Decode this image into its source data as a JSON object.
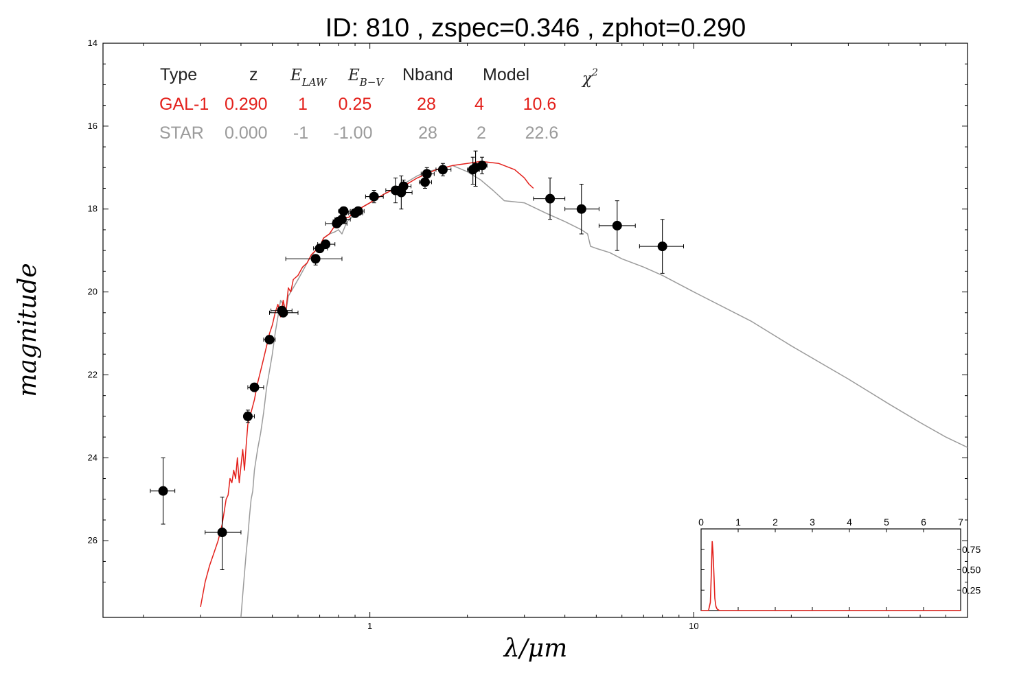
{
  "title": "ID:  810   , zspec=0.346 , zphot=0.290",
  "xlabel": "λ/μm",
  "ylabel": "magnitude",
  "table": {
    "headers": [
      "Type",
      "z",
      "E_LAW",
      "E_B-V",
      "Nband",
      "Model",
      "χ2"
    ],
    "header_math": {
      "e_law": {
        "base": "E",
        "sub": "LAW"
      },
      "e_bv": {
        "base": "E",
        "sub": "B−V"
      },
      "chi2": {
        "base": "χ",
        "sup": "2"
      }
    },
    "rows": [
      {
        "color": "#e3201b",
        "cells": [
          "GAL-1",
          "0.290",
          "1",
          "0.25",
          "28",
          "4",
          "10.6"
        ]
      },
      {
        "color": "#9b9b9b",
        "cells": [
          "STAR",
          "0.000",
          "-1",
          "-1.00",
          "28",
          "2",
          "22.6"
        ]
      }
    ]
  },
  "chart_data": [
    {
      "type": "scatter",
      "xscale": "log",
      "yinverted": true,
      "xlim": [
        0.15,
        70
      ],
      "ylim": [
        27.85,
        14
      ],
      "xticks": [
        {
          "v": 1,
          "label": "1"
        },
        {
          "v": 10,
          "label": "10"
        }
      ],
      "yticks": [
        {
          "v": 14,
          "label": "14"
        },
        {
          "v": 16,
          "label": "16"
        },
        {
          "v": 18,
          "label": "18"
        },
        {
          "v": 20,
          "label": "20"
        },
        {
          "v": 22,
          "label": "22"
        },
        {
          "v": 24,
          "label": "24"
        },
        {
          "v": 26,
          "label": "26"
        }
      ],
      "grid": false,
      "colors": {
        "galaxy": "#e3201b",
        "star": "#9b9b9b",
        "points": "#000000"
      },
      "points": [
        {
          "x": 0.23,
          "y": 24.8,
          "xlo": 0.21,
          "xhi": 0.25,
          "ylo": 24.0,
          "yhi": 25.6
        },
        {
          "x": 0.35,
          "y": 25.8,
          "xlo": 0.31,
          "xhi": 0.4,
          "ylo": 24.95,
          "yhi": 26.7
        },
        {
          "x": 0.42,
          "y": 23.0,
          "xlo": 0.41,
          "xhi": 0.44,
          "ylo": 22.85,
          "yhi": 23.15
        },
        {
          "x": 0.44,
          "y": 22.3,
          "xlo": 0.42,
          "xhi": 0.47,
          "ylo": 22.2,
          "yhi": 22.4
        },
        {
          "x": 0.49,
          "y": 21.15,
          "xlo": 0.47,
          "xhi": 0.51,
          "ylo": 21.05,
          "yhi": 21.25
        },
        {
          "x": 0.535,
          "y": 20.45,
          "xlo": 0.495,
          "xhi": 0.575,
          "ylo": 20.35,
          "yhi": 20.55
        },
        {
          "x": 0.54,
          "y": 20.5,
          "xlo": 0.49,
          "xhi": 0.6,
          "ylo": 20.4,
          "yhi": 20.6
        },
        {
          "x": 0.68,
          "y": 19.2,
          "xlo": 0.55,
          "xhi": 0.82,
          "ylo": 19.1,
          "yhi": 19.35
        },
        {
          "x": 0.7,
          "y": 18.95,
          "xlo": 0.67,
          "xhi": 0.74,
          "ylo": 18.85,
          "yhi": 19.05
        },
        {
          "x": 0.73,
          "y": 18.85,
          "xlo": 0.69,
          "xhi": 0.78,
          "ylo": 18.75,
          "yhi": 18.95
        },
        {
          "x": 0.79,
          "y": 18.35,
          "xlo": 0.73,
          "xhi": 0.85,
          "ylo": 18.25,
          "yhi": 18.45
        },
        {
          "x": 0.8,
          "y": 18.3,
          "xlo": 0.77,
          "xhi": 0.84,
          "ylo": 18.2,
          "yhi": 18.4
        },
        {
          "x": 0.82,
          "y": 18.25,
          "xlo": 0.78,
          "xhi": 0.87,
          "ylo": 18.15,
          "yhi": 18.35
        },
        {
          "x": 0.83,
          "y": 18.05,
          "xlo": 0.8,
          "xhi": 0.87,
          "ylo": 17.95,
          "yhi": 18.15
        },
        {
          "x": 0.9,
          "y": 18.1,
          "xlo": 0.86,
          "xhi": 0.95,
          "ylo": 18.0,
          "yhi": 18.2
        },
        {
          "x": 0.92,
          "y": 18.05,
          "xlo": 0.88,
          "xhi": 0.96,
          "ylo": 17.95,
          "yhi": 18.15
        },
        {
          "x": 1.03,
          "y": 17.7,
          "xlo": 0.97,
          "xhi": 1.1,
          "ylo": 17.55,
          "yhi": 17.85
        },
        {
          "x": 1.2,
          "y": 17.55,
          "xlo": 1.12,
          "xhi": 1.28,
          "ylo": 17.25,
          "yhi": 17.85
        },
        {
          "x": 1.25,
          "y": 17.6,
          "xlo": 1.18,
          "xhi": 1.35,
          "ylo": 17.2,
          "yhi": 18.0
        },
        {
          "x": 1.27,
          "y": 17.45,
          "xlo": 1.2,
          "xhi": 1.34,
          "ylo": 17.3,
          "yhi": 17.6
        },
        {
          "x": 1.48,
          "y": 17.35,
          "xlo": 1.42,
          "xhi": 1.55,
          "ylo": 17.2,
          "yhi": 17.5
        },
        {
          "x": 1.5,
          "y": 17.15,
          "xlo": 1.44,
          "xhi": 1.58,
          "ylo": 17.0,
          "yhi": 17.3
        },
        {
          "x": 1.68,
          "y": 17.05,
          "xlo": 1.6,
          "xhi": 1.78,
          "ylo": 16.9,
          "yhi": 17.2
        },
        {
          "x": 2.08,
          "y": 17.05,
          "xlo": 2.0,
          "xhi": 2.18,
          "ylo": 16.75,
          "yhi": 17.4
        },
        {
          "x": 2.12,
          "y": 17.0,
          "xlo": 2.05,
          "xhi": 2.2,
          "ylo": 16.6,
          "yhi": 17.45
        },
        {
          "x": 2.22,
          "y": 16.95,
          "xlo": 2.15,
          "xhi": 2.3,
          "ylo": 16.75,
          "yhi": 17.15
        },
        {
          "x": 3.6,
          "y": 17.75,
          "xlo": 3.2,
          "xhi": 4.0,
          "ylo": 17.25,
          "yhi": 18.25
        },
        {
          "x": 4.5,
          "y": 18.0,
          "xlo": 4.0,
          "xhi": 5.1,
          "ylo": 17.4,
          "yhi": 18.6
        },
        {
          "x": 5.8,
          "y": 18.4,
          "xlo": 5.1,
          "xhi": 6.6,
          "ylo": 17.8,
          "yhi": 19.0
        },
        {
          "x": 8.0,
          "y": 18.9,
          "xlo": 6.8,
          "xhi": 9.3,
          "ylo": 18.25,
          "yhi": 19.55
        }
      ],
      "series": [
        {
          "color": "#e3201b",
          "x": [
            0.3,
            0.31,
            0.32,
            0.33,
            0.34,
            0.35,
            0.355,
            0.36,
            0.365,
            0.37,
            0.375,
            0.38,
            0.385,
            0.39,
            0.395,
            0.4,
            0.405,
            0.41,
            0.415,
            0.42,
            0.425,
            0.43,
            0.44,
            0.45,
            0.46,
            0.47,
            0.48,
            0.49,
            0.5,
            0.51,
            0.52,
            0.53,
            0.54,
            0.55,
            0.56,
            0.57,
            0.58,
            0.6,
            0.62,
            0.64,
            0.66,
            0.68,
            0.7,
            0.72,
            0.75,
            0.78,
            0.8,
            0.83,
            0.86,
            0.9,
            0.95,
            1.0,
            1.1,
            1.2,
            1.3,
            1.4,
            1.5,
            1.6,
            1.7,
            1.8,
            2.0,
            2.2,
            2.5,
            2.8,
            3.0,
            3.1,
            3.2
          ],
          "y": [
            27.6,
            27.0,
            26.6,
            26.3,
            26.0,
            25.6,
            25.3,
            25.0,
            24.9,
            24.5,
            24.6,
            24.3,
            24.5,
            24.0,
            24.6,
            24.2,
            23.8,
            24.3,
            23.7,
            23.2,
            23.0,
            22.9,
            22.6,
            22.2,
            21.9,
            21.6,
            21.3,
            21.0,
            20.8,
            20.5,
            20.3,
            20.6,
            20.2,
            20.5,
            19.9,
            20.0,
            19.7,
            19.6,
            19.4,
            19.3,
            19.1,
            19.0,
            18.9,
            18.7,
            18.6,
            18.4,
            18.35,
            18.2,
            18.2,
            18.05,
            17.95,
            17.85,
            17.65,
            17.5,
            17.4,
            17.25,
            17.15,
            17.05,
            17.0,
            16.95,
            16.9,
            16.85,
            16.9,
            17.05,
            17.25,
            17.4,
            17.5
          ]
        },
        {
          "color": "#9b9b9b",
          "x": [
            0.4,
            0.405,
            0.41,
            0.415,
            0.42,
            0.425,
            0.43,
            0.435,
            0.44,
            0.45,
            0.46,
            0.47,
            0.48,
            0.49,
            0.5,
            0.51,
            0.52,
            0.53,
            0.54,
            0.55,
            0.56,
            0.58,
            0.6,
            0.62,
            0.65,
            0.68,
            0.7,
            0.72,
            0.75,
            0.78,
            0.8,
            0.82,
            0.85,
            0.88,
            0.9,
            0.95,
            1.0,
            1.1,
            1.2,
            1.3,
            1.4,
            1.5,
            1.6,
            1.7,
            1.8,
            2.0,
            2.2,
            2.4,
            2.6,
            3.0,
            3.5,
            4.0,
            4.5,
            4.7,
            4.8,
            5.0,
            5.5,
            6.0,
            7.0,
            8.0,
            10.0,
            15.0,
            20.0,
            30.0,
            40.0,
            50.0,
            60.0,
            70.0
          ],
          "y": [
            27.85,
            27.3,
            26.8,
            26.3,
            25.9,
            25.4,
            25.0,
            24.8,
            24.3,
            23.8,
            23.4,
            22.9,
            22.3,
            21.9,
            21.5,
            21.0,
            20.6,
            20.2,
            20.3,
            20.5,
            20.1,
            19.9,
            19.7,
            19.5,
            19.2,
            19.0,
            18.9,
            18.7,
            18.6,
            18.55,
            18.5,
            18.6,
            18.3,
            18.2,
            18.1,
            17.95,
            17.85,
            17.65,
            17.5,
            17.35,
            17.2,
            17.1,
            17.05,
            17.0,
            16.95,
            17.1,
            17.3,
            17.55,
            17.8,
            17.85,
            18.1,
            18.3,
            18.5,
            18.6,
            18.9,
            18.95,
            19.05,
            19.2,
            19.4,
            19.6,
            20.0,
            20.7,
            21.3,
            22.1,
            22.7,
            23.15,
            23.5,
            23.75
          ]
        }
      ]
    },
    {
      "type": "line",
      "xlim": [
        0,
        7
      ],
      "ylim": [
        0,
        1.0
      ],
      "xticks": [
        0,
        1,
        2,
        3,
        4,
        5,
        6,
        7
      ],
      "yticks": [
        {
          "v": 0.25,
          "label": "0.25"
        },
        {
          "v": 0.5,
          "label": "0.50"
        },
        {
          "v": 0.75,
          "label": "0.75"
        }
      ],
      "series": [
        {
          "color": "#e3201b",
          "x": [
            0.0,
            0.1,
            0.2,
            0.25,
            0.28,
            0.3,
            0.32,
            0.35,
            0.37,
            0.4,
            0.43,
            0.46,
            0.5,
            7.0
          ],
          "y": [
            0.0,
            0.0,
            0.0,
            0.1,
            0.5,
            0.85,
            0.72,
            0.4,
            0.15,
            0.05,
            0.02,
            0.01,
            0.0,
            0.0
          ]
        }
      ]
    }
  ]
}
